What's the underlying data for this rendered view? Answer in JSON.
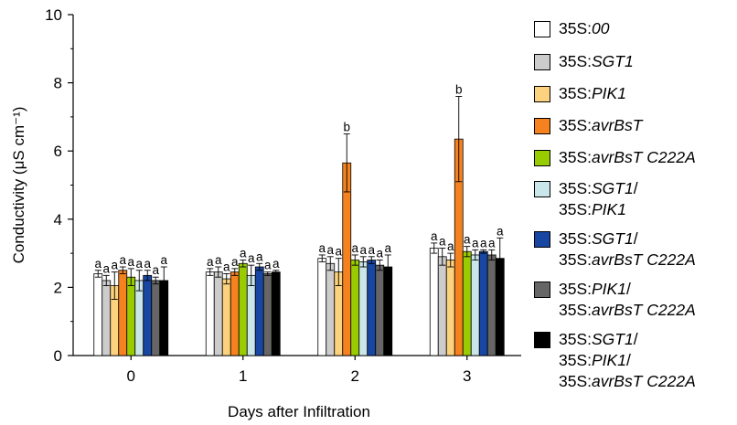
{
  "chart_data": {
    "type": "bar",
    "ylabel": "Conductivity (μS cm⁻¹)",
    "xlabel": "Days after Infiltration",
    "ylim": [
      0,
      10
    ],
    "yticks": [
      "0",
      "2",
      "4",
      "6",
      "8",
      "10"
    ],
    "categories": [
      "0",
      "1",
      "2",
      "3"
    ],
    "series": [
      {
        "name": "35S:00",
        "legend_lines": [
          [
            {
              "t": "35S:",
              "i": false
            },
            {
              "t": "00",
              "i": true
            }
          ]
        ],
        "color": "#ffffff",
        "values": [
          2.4,
          2.45,
          2.85,
          3.15
        ],
        "errors": [
          0.1,
          0.1,
          0.1,
          0.15
        ],
        "letters": [
          "a",
          "a",
          "a",
          "a"
        ]
      },
      {
        "name": "35S:SGT1",
        "legend_lines": [
          [
            {
              "t": "35S:",
              "i": false
            },
            {
              "t": "SGT1",
              "i": true
            }
          ]
        ],
        "color": "#cccccc",
        "values": [
          2.2,
          2.45,
          2.7,
          2.9
        ],
        "errors": [
          0.15,
          0.15,
          0.2,
          0.25
        ],
        "letters": [
          "a",
          "a",
          "a",
          "a"
        ]
      },
      {
        "name": "35S:PIK1",
        "legend_lines": [
          [
            {
              "t": "35S:",
              "i": false
            },
            {
              "t": "PIK1",
              "i": true
            }
          ]
        ],
        "color": "#fcd27e",
        "values": [
          2.05,
          2.25,
          2.45,
          2.8
        ],
        "errors": [
          0.4,
          0.15,
          0.4,
          0.2
        ],
        "letters": [
          "a",
          "a",
          "a",
          "a"
        ]
      },
      {
        "name": "35S:avrBsT",
        "legend_lines": [
          [
            {
              "t": "35S:",
              "i": false
            },
            {
              "t": "avrBsT",
              "i": true
            }
          ]
        ],
        "color": "#f5821f",
        "values": [
          2.5,
          2.45,
          5.65,
          6.35
        ],
        "errors": [
          0.1,
          0.1,
          0.85,
          1.25
        ],
        "letters": [
          "a",
          "a",
          "b",
          "b"
        ]
      },
      {
        "name": "35S:avrBsT C222A",
        "legend_lines": [
          [
            {
              "t": "35S:",
              "i": false
            },
            {
              "t": "avrBsT C222A",
              "i": true
            }
          ]
        ],
        "color": "#99cc00",
        "values": [
          2.3,
          2.7,
          2.8,
          3.05
        ],
        "errors": [
          0.25,
          0.1,
          0.15,
          0.15
        ],
        "letters": [
          "a",
          "a",
          "a",
          "a"
        ]
      },
      {
        "name": "35S:SGT1/35S:PIK1",
        "legend_lines": [
          [
            {
              "t": "35S:",
              "i": false
            },
            {
              "t": "SGT1",
              "i": true
            },
            {
              "t": "/",
              "i": false
            }
          ],
          [
            {
              "t": "35S:",
              "i": false
            },
            {
              "t": "PIK1",
              "i": true
            }
          ]
        ],
        "color": "#c9e6ea",
        "values": [
          2.2,
          2.35,
          2.75,
          2.95
        ],
        "errors": [
          0.3,
          0.3,
          0.15,
          0.15
        ],
        "letters": [
          "a",
          "a",
          "a",
          "a"
        ]
      },
      {
        "name": "35S:SGT1/35S:avrBsT C222A",
        "legend_lines": [
          [
            {
              "t": "35S:",
              "i": false
            },
            {
              "t": "SGT1",
              "i": true
            },
            {
              "t": "/",
              "i": false
            }
          ],
          [
            {
              "t": "35S:",
              "i": false
            },
            {
              "t": "avrBsT C222A",
              "i": true
            }
          ]
        ],
        "color": "#1846a3",
        "values": [
          2.35,
          2.6,
          2.8,
          3.05
        ],
        "errors": [
          0.15,
          0.1,
          0.1,
          0.05
        ],
        "letters": [
          "a",
          "a",
          "a",
          "a"
        ]
      },
      {
        "name": "35S:PIK1/35S:avrBsT C222A",
        "legend_lines": [
          [
            {
              "t": "35S:",
              "i": false
            },
            {
              "t": "PIK1",
              "i": true
            },
            {
              "t": "/",
              "i": false
            }
          ],
          [
            {
              "t": "35S:",
              "i": false
            },
            {
              "t": "avrBsT C222A",
              "i": true
            }
          ]
        ],
        "color": "#666666",
        "values": [
          2.2,
          2.4,
          2.65,
          2.95
        ],
        "errors": [
          0.1,
          0.05,
          0.15,
          0.15
        ],
        "letters": [
          "a",
          "a",
          "a",
          "a"
        ]
      },
      {
        "name": "35S:SGT1/35S:PIK1/35S:avrBsT C222A",
        "legend_lines": [
          [
            {
              "t": "35S:",
              "i": false
            },
            {
              "t": "SGT1",
              "i": true
            },
            {
              "t": "/",
              "i": false
            }
          ],
          [
            {
              "t": "35S:",
              "i": false
            },
            {
              "t": "PIK1",
              "i": true
            },
            {
              "t": "/",
              "i": false
            }
          ],
          [
            {
              "t": "35S:",
              "i": false
            },
            {
              "t": "avrBsT C222A",
              "i": true
            }
          ]
        ],
        "color": "#000000",
        "values": [
          2.2,
          2.45,
          2.6,
          2.85
        ],
        "errors": [
          0.4,
          0.05,
          0.35,
          0.6
        ],
        "letters": [
          "a",
          "a",
          "a",
          "a"
        ]
      }
    ]
  }
}
